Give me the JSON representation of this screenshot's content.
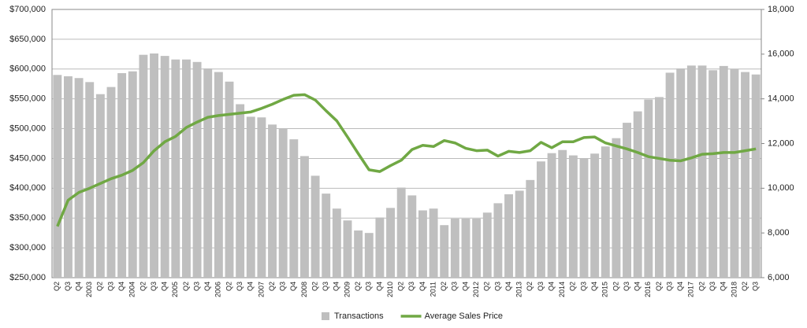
{
  "chart_data": {
    "type": "bar",
    "categories": [
      "Q2",
      "Q3",
      "Q4",
      "2003",
      "Q2",
      "Q3",
      "Q4",
      "2004",
      "Q2",
      "Q3",
      "Q4",
      "2005",
      "Q2",
      "Q3",
      "Q4",
      "2006",
      "Q2",
      "Q3",
      "Q4",
      "2007",
      "Q2",
      "Q3",
      "Q4",
      "2008",
      "Q2",
      "Q3",
      "Q4",
      "2009",
      "Q2",
      "Q3",
      "Q4",
      "2010",
      "Q2",
      "Q3",
      "Q4",
      "2011",
      "Q2",
      "Q3",
      "Q4",
      "2012",
      "Q2",
      "Q3",
      "Q4",
      "2013",
      "Q2",
      "Q3",
      "Q4",
      "2014",
      "Q2",
      "Q3",
      "Q4",
      "2015",
      "Q2",
      "Q3",
      "Q4",
      "2016",
      "Q2",
      "Q3",
      "Q4",
      "2017",
      "Q2",
      "Q3",
      "Q4",
      "2018",
      "Q2",
      "Q3"
    ],
    "series": [
      {
        "name": "Transactions",
        "type": "bar",
        "axis": "y2",
        "color": "#bfbfbf",
        "values": [
          15070,
          15010,
          14930,
          14750,
          14210,
          14530,
          15150,
          15230,
          15970,
          16030,
          15920,
          15760,
          15760,
          15650,
          15360,
          15200,
          14770,
          13760,
          13200,
          13170,
          12850,
          12670,
          12190,
          11440,
          10560,
          9760,
          9090,
          8560,
          8110,
          8000,
          8690,
          9120,
          10030,
          9680,
          9010,
          9090,
          8350,
          8640,
          8640,
          8640,
          8910,
          9330,
          9730,
          9890,
          10370,
          11200,
          11570,
          11710,
          11470,
          11330,
          11550,
          11870,
          12240,
          12930,
          13440,
          13970,
          14080,
          15170,
          15360,
          15490,
          15490,
          15280,
          15470,
          15330,
          15200,
          15090
        ]
      },
      {
        "name": "Average Sales Price",
        "type": "line",
        "color": "#70a844",
        "values": [
          336000,
          380000,
          393000,
          400000,
          408000,
          416000,
          422000,
          430000,
          443000,
          463000,
          478000,
          487000,
          502000,
          511000,
          519000,
          522000,
          524000,
          526000,
          528000,
          534000,
          541000,
          549000,
          556000,
          557000,
          548000,
          530000,
          513000,
          486000,
          458000,
          431000,
          428000,
          438000,
          447000,
          465000,
          472000,
          470000,
          480000,
          476000,
          467000,
          463000,
          464000,
          454000,
          462000,
          460000,
          463000,
          477000,
          468000,
          478000,
          478000,
          485000,
          486000,
          476000,
          471000,
          466000,
          460000,
          453000,
          450000,
          447000,
          446000,
          451000,
          457000,
          458000,
          460000,
          460000,
          463000,
          466000
        ]
      }
    ],
    "ylim": [
      250000,
      700000
    ],
    "yticks": [
      {
        "value": 250000,
        "label": "$250,000"
      },
      {
        "value": 300000,
        "label": "$300,000"
      },
      {
        "value": 350000,
        "label": "$350,000"
      },
      {
        "value": 400000,
        "label": "$400,000"
      },
      {
        "value": 450000,
        "label": "$450,000"
      },
      {
        "value": 500000,
        "label": "$500,000"
      },
      {
        "value": 550000,
        "label": "$550,000"
      },
      {
        "value": 600000,
        "label": "$600,000"
      },
      {
        "value": 650000,
        "label": "$650,000"
      },
      {
        "value": 700000,
        "label": "$700,000"
      }
    ],
    "y2lim": [
      6000,
      18000
    ],
    "y2ticks": [
      {
        "value": 6000,
        "label": "6,000"
      },
      {
        "value": 8000,
        "label": "8,000"
      },
      {
        "value": 10000,
        "label": "10,000"
      },
      {
        "value": 12000,
        "label": "12,000"
      },
      {
        "value": 14000,
        "label": "14,000"
      },
      {
        "value": 16000,
        "label": "16,000"
      },
      {
        "value": 18000,
        "label": "18,000"
      }
    ],
    "grid": true,
    "legend": "bottom"
  }
}
